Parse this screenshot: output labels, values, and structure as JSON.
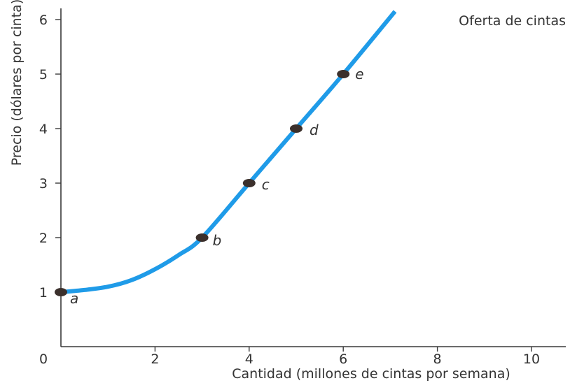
{
  "chart_data": {
    "type": "line",
    "title": "Oferta de cintas",
    "xlabel": "Cantidad (millones de cintas por semana)",
    "ylabel": "Precio (dólares por cinta)",
    "xlim": [
      0,
      10
    ],
    "ylim": [
      0,
      6
    ],
    "x_ticks": [
      0,
      2,
      4,
      6,
      8,
      10
    ],
    "y_ticks": [
      1,
      2,
      3,
      4,
      5,
      6
    ],
    "origin_label": "0",
    "grid": false,
    "line_color": "#1f9be8",
    "curve": {
      "x": [
        0,
        0.5,
        1.0,
        1.5,
        2.0,
        2.5,
        3.0,
        4.0,
        5.0,
        6.0,
        7.1
      ],
      "y": [
        1.0,
        1.04,
        1.1,
        1.22,
        1.42,
        1.68,
        2.0,
        3.0,
        4.0,
        5.0,
        6.15
      ]
    },
    "points": [
      {
        "label": "a",
        "x": 0,
        "y": 1
      },
      {
        "label": "b",
        "x": 3,
        "y": 2
      },
      {
        "label": "c",
        "x": 4,
        "y": 3
      },
      {
        "label": "d",
        "x": 5,
        "y": 4
      },
      {
        "label": "e",
        "x": 6,
        "y": 5
      }
    ]
  }
}
